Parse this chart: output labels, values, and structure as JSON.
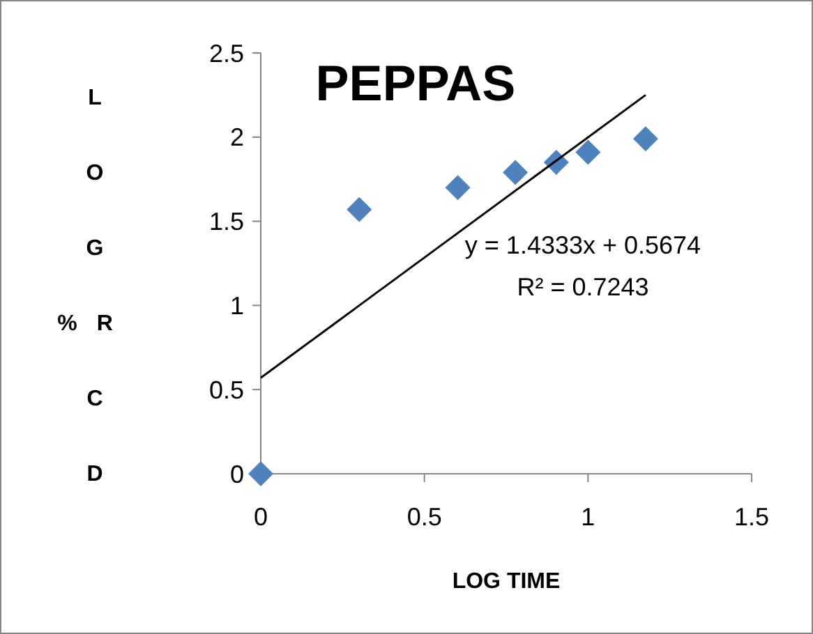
{
  "chart_data": {
    "type": "scatter",
    "title": "PEPPAS",
    "xlabel": "LOG TIME",
    "ylabel": "L O G %R C D",
    "x": [
      0,
      0.301,
      0.602,
      0.778,
      0.903,
      1,
      1.176
    ],
    "series": [
      {
        "color": "#4f81bd",
        "values": [
          0,
          1.57,
          1.7,
          1.79,
          1.85,
          1.91,
          1.99
        ],
        "marker": "diamond"
      },
      {
        "type": "line",
        "color": "#000000",
        "x": [
          0,
          1.176
        ],
        "values": [
          0.57,
          2.25
        ],
        "marker": "none"
      }
    ],
    "annotations": [
      "y = 1.4333x + 0.5674",
      "R² = 0.7243"
    ],
    "xlim": [
      0,
      1.5
    ],
    "xticks": [
      0,
      0.5,
      1,
      1.5
    ],
    "ylim": [
      0,
      2.5
    ],
    "yticks": [
      0,
      0.5,
      1,
      1.5,
      2,
      2.5
    ],
    "grid": false
  }
}
